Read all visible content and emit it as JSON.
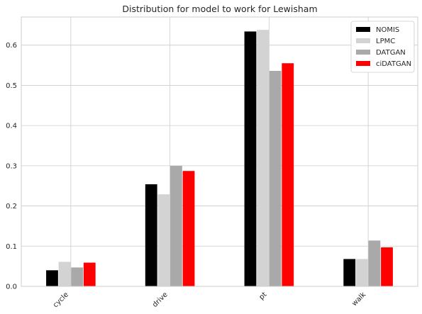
{
  "chart_data": {
    "type": "bar",
    "title": "Distribution for model to work for Lewisham",
    "xlabel": "",
    "ylabel": "",
    "categories": [
      "cycle",
      "drive",
      "pt",
      "walk"
    ],
    "series": [
      {
        "name": "NOMIS",
        "color": "#000000",
        "values": [
          0.04,
          0.254,
          0.634,
          0.068
        ]
      },
      {
        "name": "LPMC",
        "color": "#d3d3d3",
        "values": [
          0.061,
          0.229,
          0.638,
          0.068
        ]
      },
      {
        "name": "DATGAN",
        "color": "#a9a9a9",
        "values": [
          0.047,
          0.3,
          0.536,
          0.114
        ]
      },
      {
        "name": "ciDATGAN",
        "color": "#ff0000",
        "values": [
          0.059,
          0.287,
          0.555,
          0.097
        ]
      }
    ],
    "ylim": [
      0,
      0.67
    ],
    "yticks": [
      0.0,
      0.1,
      0.2,
      0.3,
      0.4,
      0.5,
      0.6
    ],
    "ytick_labels": [
      "0.0",
      "0.1",
      "0.2",
      "0.3",
      "0.4",
      "0.5",
      "0.6"
    ],
    "grid": true,
    "legend_position": "top-right"
  }
}
